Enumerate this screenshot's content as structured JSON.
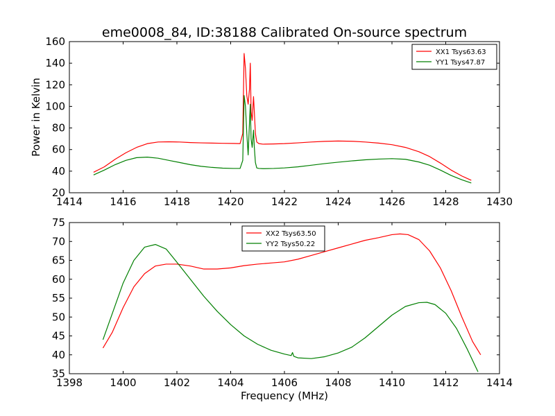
{
  "figure": {
    "title": "eme0008_84, ID:38188 Calibrated On-source spectrum",
    "xlabel": "Frequency (MHz)"
  },
  "chart_data": [
    {
      "type": "line",
      "title": "eme0008_84, ID:38188 Calibrated On-source spectrum",
      "xlabel": "",
      "ylabel": "Power in Kelvin",
      "xlim": [
        1414,
        1430
      ],
      "ylim": [
        20,
        160
      ],
      "xticks": [
        1414,
        1416,
        1418,
        1420,
        1422,
        1424,
        1426,
        1428,
        1430
      ],
      "yticks": [
        20,
        40,
        60,
        80,
        100,
        120,
        140,
        160
      ],
      "grid": false,
      "legend_position": "top-right",
      "series": [
        {
          "name": "XX1 Tsys63.63",
          "color": "#ff0000",
          "x": [
            1414.9,
            1415.3,
            1415.7,
            1416.1,
            1416.5,
            1416.9,
            1417.3,
            1417.7,
            1418.1,
            1418.5,
            1418.9,
            1419.3,
            1419.7,
            1420.1,
            1420.35,
            1420.45,
            1420.5,
            1420.55,
            1420.6,
            1420.65,
            1420.7,
            1420.73,
            1420.76,
            1420.8,
            1420.85,
            1420.88,
            1420.92,
            1420.97,
            1421.05,
            1421.2,
            1421.6,
            1422.0,
            1422.5,
            1423.0,
            1423.5,
            1424.0,
            1424.5,
            1425.0,
            1425.5,
            1426.0,
            1426.5,
            1427.0,
            1427.4,
            1427.8,
            1428.2,
            1428.6,
            1428.95
          ],
          "y": [
            39,
            44,
            51,
            57,
            62,
            65.5,
            67,
            67.2,
            67,
            66.5,
            66.2,
            66,
            65.8,
            65.7,
            65.5,
            75,
            149,
            135,
            110,
            102,
            116,
            140,
            95,
            87,
            109,
            95,
            75,
            67,
            65.5,
            65,
            65.2,
            65.5,
            66.2,
            67,
            67.6,
            67.9,
            67.7,
            67,
            66,
            64.5,
            62,
            58,
            53.5,
            47.5,
            41,
            35.5,
            31.5
          ]
        },
        {
          "name": "YY1 Tsys47.87",
          "color": "#007f00",
          "x": [
            1414.9,
            1415.3,
            1415.7,
            1416.1,
            1416.5,
            1416.9,
            1417.3,
            1417.7,
            1418.1,
            1418.5,
            1418.9,
            1419.3,
            1419.7,
            1420.1,
            1420.35,
            1420.45,
            1420.5,
            1420.55,
            1420.6,
            1420.65,
            1420.7,
            1420.73,
            1420.76,
            1420.8,
            1420.85,
            1420.88,
            1420.92,
            1420.97,
            1421.05,
            1421.2,
            1421.6,
            1422.0,
            1422.5,
            1423.0,
            1423.5,
            1424.0,
            1424.5,
            1425.0,
            1425.5,
            1426.0,
            1426.5,
            1427.0,
            1427.4,
            1427.8,
            1428.2,
            1428.6,
            1428.95
          ],
          "y": [
            36.5,
            41,
            46,
            50,
            52.5,
            53,
            52,
            50,
            48,
            46,
            44.5,
            43.5,
            42.8,
            42.5,
            42.5,
            50,
            110,
            100,
            75,
            55,
            85,
            102,
            70,
            62,
            78,
            62,
            48,
            43,
            42.5,
            42.3,
            42.5,
            43,
            44,
            45.5,
            47,
            48.3,
            49.5,
            50.5,
            51.2,
            51.6,
            51,
            48.5,
            45.5,
            41,
            36,
            32,
            29
          ]
        }
      ]
    },
    {
      "type": "line",
      "title": "",
      "xlabel": "Frequency (MHz)",
      "ylabel": "",
      "xlim": [
        1398,
        1414
      ],
      "ylim": [
        35,
        75
      ],
      "xticks": [
        1398,
        1400,
        1402,
        1404,
        1406,
        1408,
        1410,
        1412,
        1414
      ],
      "yticks": [
        35,
        40,
        45,
        50,
        55,
        60,
        65,
        70,
        75
      ],
      "grid": false,
      "legend_position": "top-center",
      "series": [
        {
          "name": "XX2 Tsys63.50",
          "color": "#ff0000",
          "x": [
            1399.25,
            1399.6,
            1400.0,
            1400.4,
            1400.8,
            1401.2,
            1401.6,
            1402.0,
            1402.5,
            1403.0,
            1403.5,
            1404.0,
            1404.5,
            1405.0,
            1405.5,
            1406.0,
            1406.5,
            1407.0,
            1407.5,
            1408.0,
            1408.5,
            1409.0,
            1409.5,
            1410.0,
            1410.3,
            1410.6,
            1411.0,
            1411.4,
            1411.8,
            1412.2,
            1412.6,
            1413.0,
            1413.3
          ],
          "y": [
            41.8,
            46,
            52.5,
            58,
            61.5,
            63.5,
            64,
            64,
            63.5,
            62.7,
            62.7,
            63,
            63.6,
            64,
            64.3,
            64.6,
            65.3,
            66.3,
            67.3,
            68.3,
            69.3,
            70.3,
            71,
            71.8,
            72,
            71.8,
            70.5,
            67.5,
            63,
            57,
            50,
            43.5,
            40
          ]
        },
        {
          "name": "YY2 Tsys50.22",
          "color": "#007f00",
          "x": [
            1399.25,
            1399.6,
            1400.0,
            1400.4,
            1400.8,
            1401.2,
            1401.6,
            1402.0,
            1402.5,
            1403.0,
            1403.5,
            1404.0,
            1404.5,
            1405.0,
            1405.5,
            1406.0,
            1406.25,
            1406.3,
            1406.35,
            1406.5,
            1407.0,
            1407.5,
            1408.0,
            1408.5,
            1409.0,
            1409.5,
            1410.0,
            1410.5,
            1411.0,
            1411.3,
            1411.6,
            1412.0,
            1412.4,
            1412.8,
            1413.2
          ],
          "y": [
            44,
            51,
            59,
            65,
            68.5,
            69.2,
            68,
            64.5,
            60,
            55.5,
            51.5,
            48,
            45,
            42.8,
            41.2,
            40.2,
            39.8,
            40.6,
            39.6,
            39.2,
            39,
            39.5,
            40.5,
            42,
            44.5,
            47.5,
            50.5,
            52.8,
            53.8,
            53.9,
            53.3,
            51,
            47,
            41.5,
            35.5
          ]
        }
      ]
    }
  ]
}
